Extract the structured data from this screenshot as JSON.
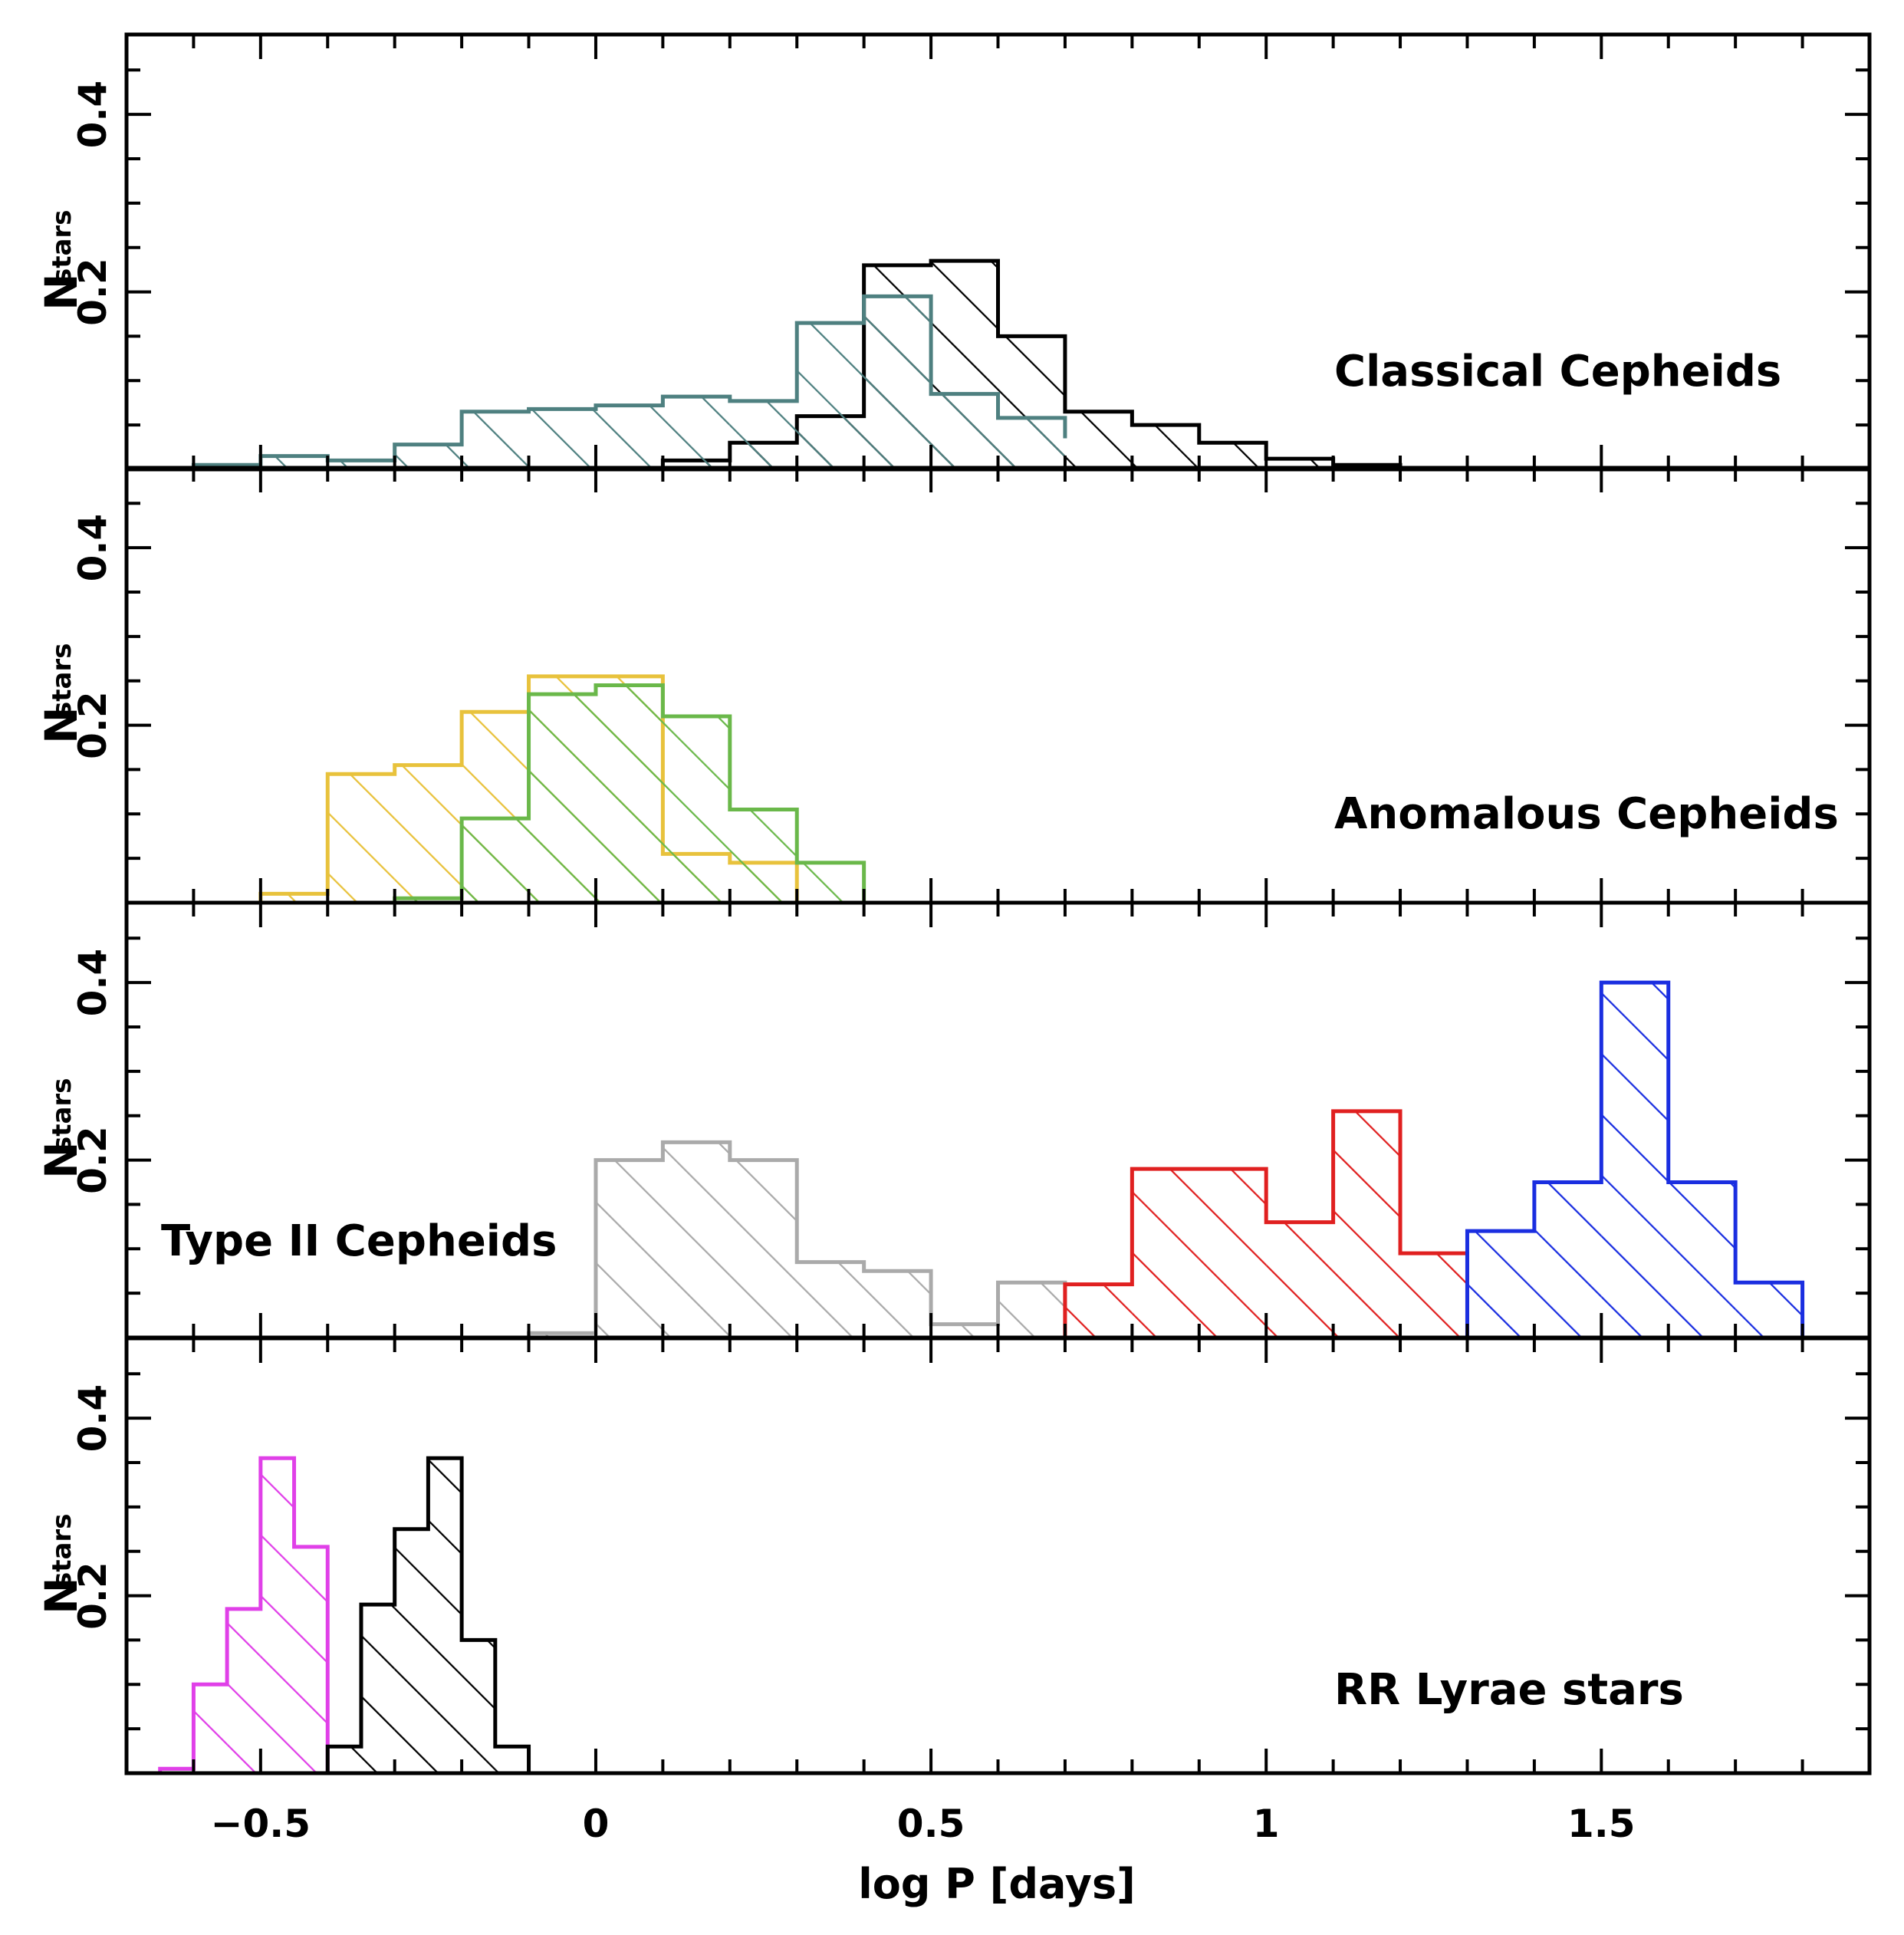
{
  "chart_data": {
    "type": "histogram",
    "xlabel": "log P [days]",
    "ylabel_main": "N",
    "ylabel_sub": "stars",
    "xlim": [
      -0.7,
      1.9
    ],
    "ylim": [
      0,
      0.49
    ],
    "x_ticks": [
      -0.5,
      0,
      0.5,
      1,
      1.5
    ],
    "x_tick_labels": [
      "−0.5",
      "0",
      "0.5",
      "1",
      "1.5"
    ],
    "y_ticks": [
      0.2,
      0.4
    ],
    "y_tick_labels": [
      "0.2",
      "0.4"
    ],
    "panels": [
      {
        "label": "Classical Cepheids",
        "series": [
          {
            "color": "#000000",
            "edges": [
              0.1,
              0.2,
              0.3,
              0.4,
              0.5,
              0.6,
              0.7,
              0.8,
              0.9,
              1.0,
              1.1,
              1.2
            ],
            "values": [
              0.01,
              0.03,
              0.06,
              0.23,
              0.235,
              0.15,
              0.065,
              0.05,
              0.03,
              0.012,
              0.005
            ]
          },
          {
            "color": "#4e8080",
            "edges": [
              -0.6,
              -0.5,
              -0.4,
              -0.3,
              -0.2,
              -0.1,
              0.0,
              0.1,
              0.2,
              0.3,
              0.4,
              0.5,
              0.6,
              0.7
            ],
            "values": [
              0.005,
              0.015,
              0.01,
              0.028,
              0.065,
              0.068,
              0.072,
              0.082,
              0.077,
              0.165,
              0.195,
              0.085,
              0.058,
              0.035
            ]
          }
        ]
      },
      {
        "label": "Anomalous Cepheids",
        "series": [
          {
            "color": "#e8c23c",
            "edges": [
              -0.5,
              -0.4,
              -0.3,
              -0.2,
              -0.1,
              0.0,
              0.1,
              0.2,
              0.3
            ],
            "values": [
              0.01,
              0.145,
              0.155,
              0.215,
              0.255,
              0.255,
              0.055,
              0.045
            ]
          },
          {
            "color": "#6ab84a",
            "edges": [
              -0.3,
              -0.2,
              -0.1,
              0.0,
              0.1,
              0.2,
              0.3,
              0.4
            ],
            "values": [
              0.005,
              0.095,
              0.235,
              0.245,
              0.21,
              0.105,
              0.045
            ]
          }
        ]
      },
      {
        "label": "Type II Cepheids",
        "series": [
          {
            "color": "#aaaaaa",
            "edges": [
              -0.1,
              0.0,
              0.1,
              0.2,
              0.3,
              0.4,
              0.5,
              0.6,
              0.7
            ],
            "values": [
              0.005,
              0.2,
              0.22,
              0.2,
              0.085,
              0.075,
              0.015,
              0.062
            ]
          },
          {
            "color": "#e02020",
            "edges": [
              0.7,
              0.8,
              0.9,
              1.0,
              1.1,
              1.2,
              1.3
            ],
            "values": [
              0.06,
              0.19,
              0.19,
              0.13,
              0.255,
              0.095
            ]
          },
          {
            "color": "#1a2ee0",
            "edges": [
              1.3,
              1.4,
              1.5,
              1.6,
              1.7,
              1.8
            ],
            "values": [
              0.12,
              0.175,
              0.4,
              0.175,
              0.062
            ]
          }
        ]
      },
      {
        "label": "RR Lyrae stars",
        "series": [
          {
            "color": "#e040e8",
            "edges": [
              -0.65,
              -0.6,
              -0.55,
              -0.5,
              -0.45,
              -0.4
            ],
            "values": [
              0.005,
              0.1,
              0.185,
              0.355,
              0.255
            ]
          },
          {
            "color": "#000000",
            "edges": [
              -0.4,
              -0.35,
              -0.3,
              -0.25,
              -0.2,
              -0.15,
              -0.1
            ],
            "values": [
              0.03,
              0.19,
              0.275,
              0.355,
              0.15,
              0.03
            ]
          }
        ]
      }
    ]
  }
}
